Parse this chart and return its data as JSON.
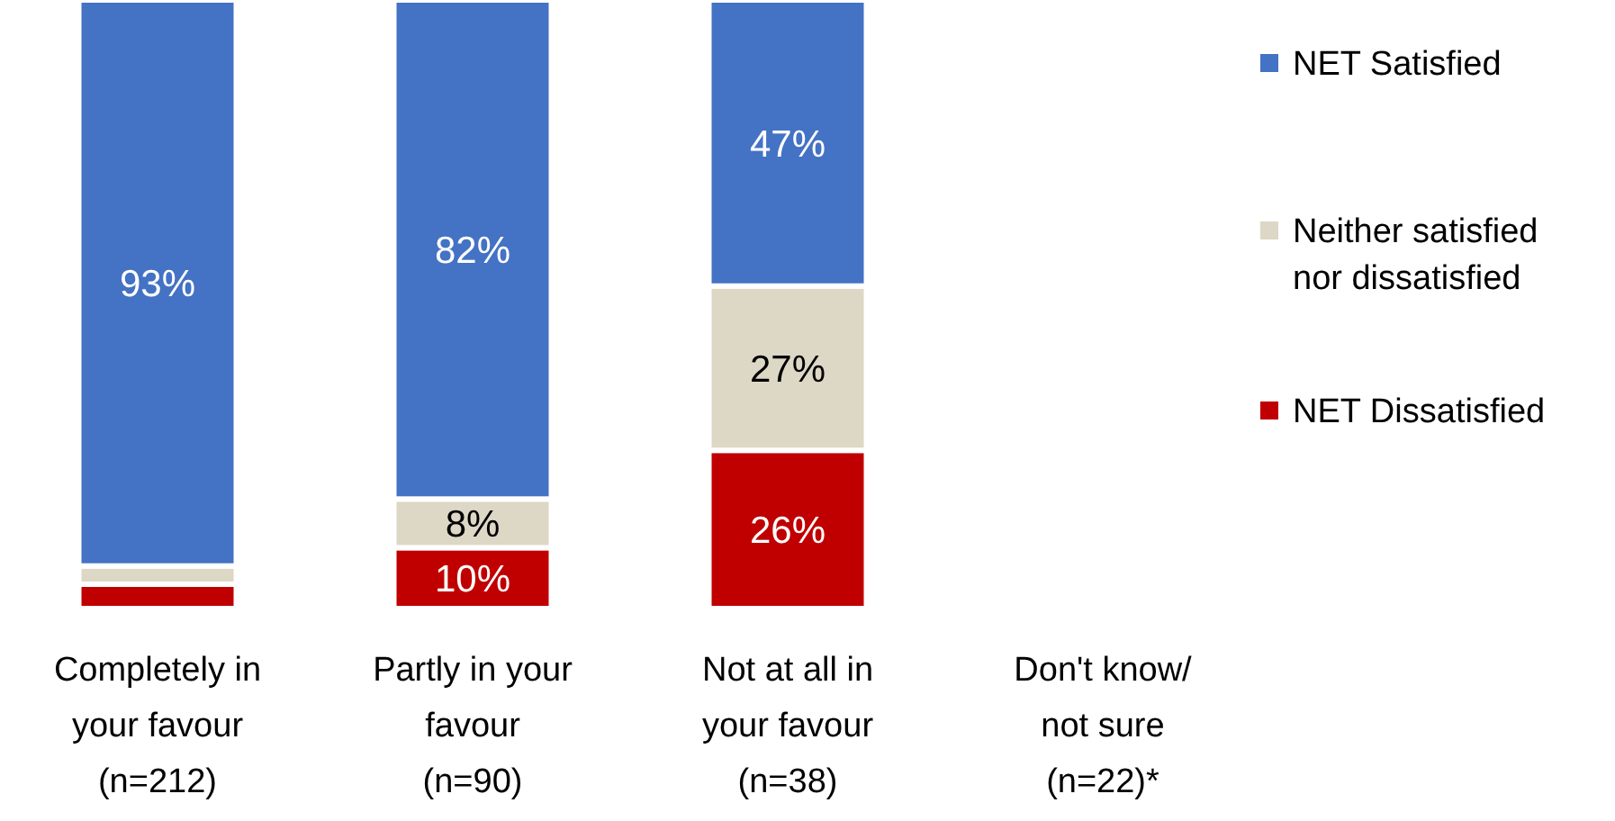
{
  "chart_data": {
    "type": "bar",
    "stacked": true,
    "categories": [
      "Completely in\nyour favour\n(n=212)",
      "Partly in your\nfavour\n(n=90)",
      "Not at all in\nyour favour\n(n=38)",
      "Don't know/\nnot sure\n(n=22)*"
    ],
    "ylim": [
      0,
      100
    ],
    "tick_labels": "x",
    "legend": "right",
    "grid": false,
    "series": [
      {
        "name": "NET Dissatisfied",
        "color": "#c00000",
        "values": [
          4,
          10,
          26,
          null
        ],
        "value_labels": [
          null,
          "10%",
          "26%",
          null
        ]
      },
      {
        "name": "Neither satisfied nor dissatisfied",
        "color": "#ddd7c6",
        "values": [
          3,
          8,
          27,
          null
        ],
        "value_labels": [
          null,
          "8%",
          "27%",
          null
        ]
      },
      {
        "name": "NET Satisfied",
        "color": "#4472c4",
        "values": [
          93,
          82,
          47,
          null
        ],
        "value_labels": [
          "93%",
          "82%",
          "47%",
          null
        ]
      }
    ]
  }
}
